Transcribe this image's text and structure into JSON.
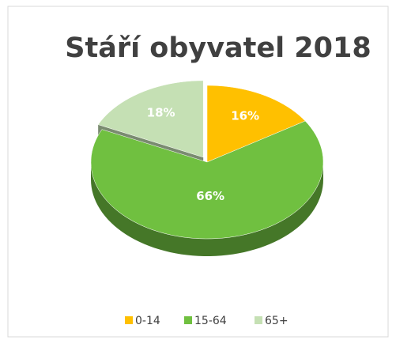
{
  "chart_data": {
    "type": "pie3d",
    "title": "Stáří obyvatel 2018",
    "categories": [
      "0-14",
      "15-64",
      "65+"
    ],
    "values": [
      16,
      66,
      18
    ],
    "value_labels": [
      "16%",
      "66%",
      "18%"
    ],
    "colors": [
      "#ffc000",
      "#70c040",
      "#c5e0b4"
    ],
    "legend": "bottom"
  }
}
